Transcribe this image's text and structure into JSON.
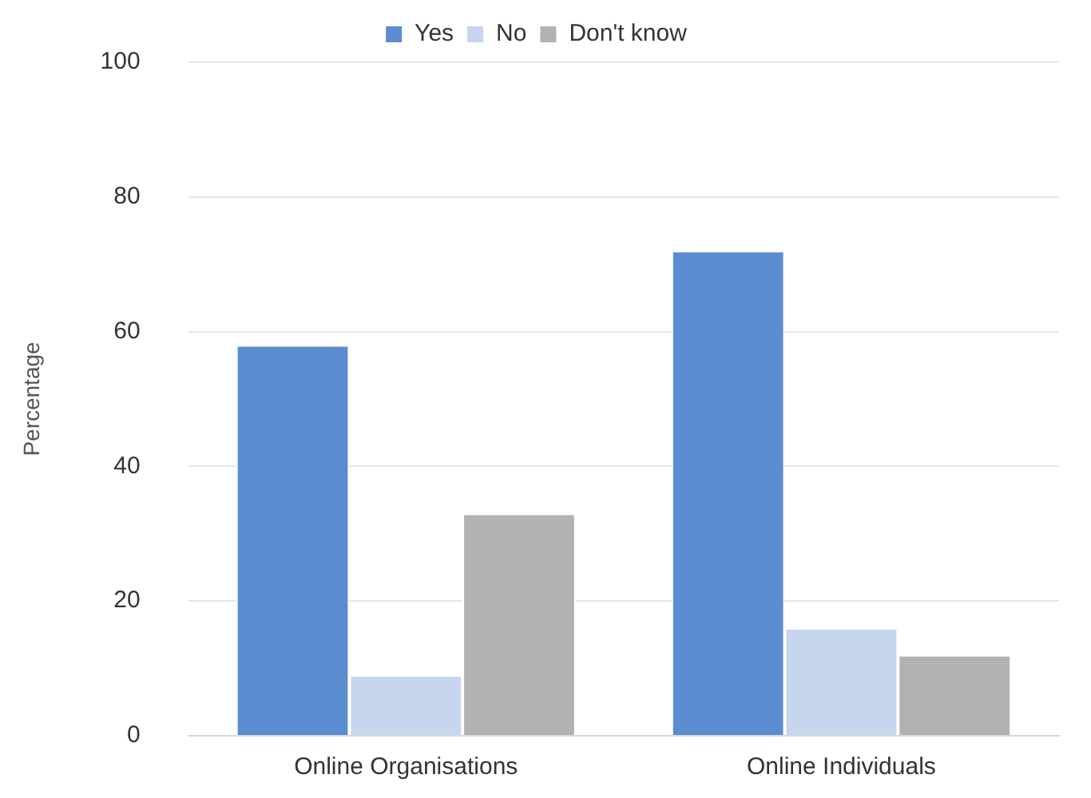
{
  "chart_data": {
    "type": "bar",
    "ylabel": "Percentage",
    "categories": [
      "Online Organisations",
      "Online Individuals"
    ],
    "series": [
      {
        "name": "Yes",
        "color": "#5b8ccf",
        "values": [
          58,
          72
        ]
      },
      {
        "name": "No",
        "color": "#c5d6ee",
        "values": [
          9,
          16
        ]
      },
      {
        "name": "Don't know",
        "color": "#b2b2b2",
        "values": [
          33,
          12
        ]
      }
    ],
    "ylim": [
      0,
      100
    ],
    "yticks": [
      0,
      20,
      40,
      60,
      80,
      100
    ],
    "grid": "y",
    "legend": "top"
  }
}
